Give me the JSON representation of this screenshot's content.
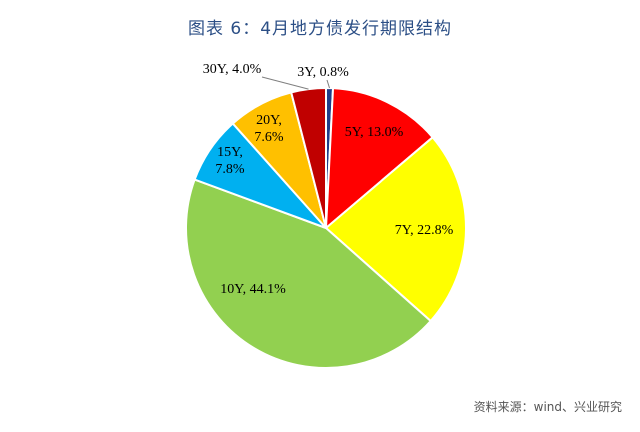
{
  "title": "图表 6：4月地方债发行期限结构",
  "source": "资料来源：wind、兴业研究",
  "chart_data": {
    "type": "pie",
    "title": "图表 6：4月地方债发行期限结构",
    "legend": "none",
    "slices": [
      {
        "category": "3Y",
        "value": 0.8,
        "label": "3Y, 0.8%",
        "color": "#1f3c88"
      },
      {
        "category": "5Y",
        "value": 13.0,
        "label": "5Y, 13.0%",
        "color": "#ff0000"
      },
      {
        "category": "7Y",
        "value": 22.8,
        "label": "7Y, 22.8%",
        "color": "#ffff00"
      },
      {
        "category": "10Y",
        "value": 44.1,
        "label": "10Y, 44.1%",
        "color": "#92d050"
      },
      {
        "category": "15Y",
        "value": 7.8,
        "label": "15Y, 7.8%",
        "color": "#00b0f0"
      },
      {
        "category": "20Y",
        "value": 7.6,
        "label": "20Y, 7.6%",
        "color": "#ffc000"
      },
      {
        "category": "30Y",
        "value": 4.0,
        "label": "30Y, 4.0%",
        "color": "#c00000"
      }
    ]
  }
}
